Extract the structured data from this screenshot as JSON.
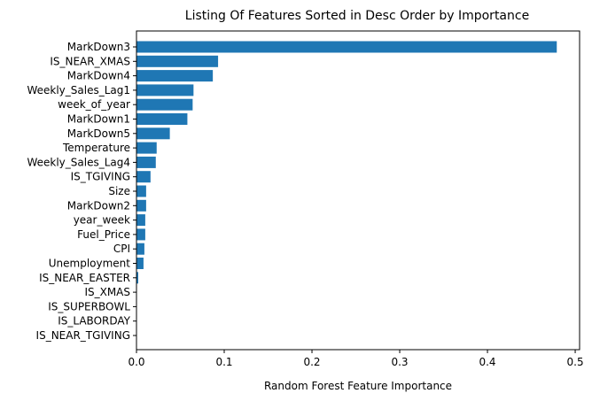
{
  "chart_data": {
    "type": "bar",
    "orientation": "horizontal",
    "title": "Listing Of Features Sorted in Desc Order by Importance",
    "xlabel": "Random Forest Feature Importance",
    "ylabel": "",
    "xlim": [
      0,
      0.505
    ],
    "xticks": [
      0.0,
      0.1,
      0.2,
      0.3,
      0.4,
      0.5
    ],
    "xtick_labels": [
      "0.0",
      "0.1",
      "0.2",
      "0.3",
      "0.4",
      "0.5"
    ],
    "bar_color": "#1f77b4",
    "grid": false,
    "legend": "none",
    "categories": [
      "MarkDown3",
      "IS_NEAR_XMAS",
      "MarkDown4",
      "Weekly_Sales_Lag1",
      "week_of_year",
      "MarkDown1",
      "MarkDown5",
      "Temperature",
      "Weekly_Sales_Lag4",
      "IS_TGIVING",
      "Size",
      "MarkDown2",
      "year_week",
      "Fuel_Price",
      "CPI",
      "Unemployment",
      "IS_NEAR_EASTER",
      "IS_XMAS",
      "IS_SUPERBOWL",
      "IS_LABORDAY",
      "IS_NEAR_TGIVING"
    ],
    "values": [
      0.479,
      0.093,
      0.087,
      0.065,
      0.064,
      0.058,
      0.038,
      0.023,
      0.022,
      0.016,
      0.011,
      0.011,
      0.01,
      0.01,
      0.009,
      0.008,
      0.002,
      0.0005,
      0.0003,
      0.0002,
      0.0001
    ]
  }
}
